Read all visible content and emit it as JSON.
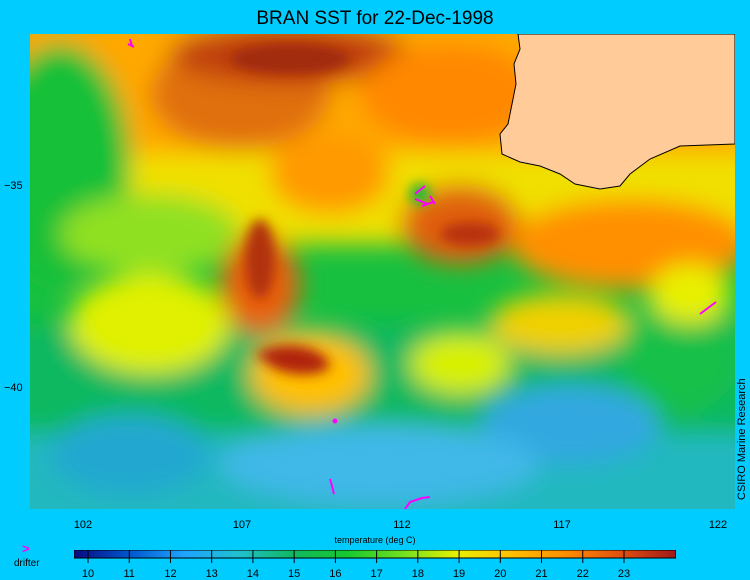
{
  "title": "BRAN SST for 22-Dec-1998",
  "y_ticks": [
    "−35",
    "−40"
  ],
  "x_ticks": [
    "102",
    "107",
    "112",
    "117",
    "122"
  ],
  "colorbar": {
    "label": "temperature (deg C)",
    "ticks": [
      "10",
      "11",
      "12",
      "13",
      "14",
      "15",
      "16",
      "17",
      "18",
      "19",
      "20",
      "21",
      "22",
      "23"
    ],
    "stops": [
      "#0a0a80",
      "#0055cc",
      "#1fa3ff",
      "#20c0d0",
      "#10b860",
      "#18c830",
      "#70e020",
      "#e8f000",
      "#ffc000",
      "#ff8c00",
      "#e05010",
      "#a01818"
    ]
  },
  "legend": {
    "symbol": ">",
    "label": "drifter"
  },
  "credit": "CSIRO Marine Research",
  "colors": {
    "background": "#00ccff",
    "land": "#ffcc99",
    "drifter": "#ff00ff"
  }
}
